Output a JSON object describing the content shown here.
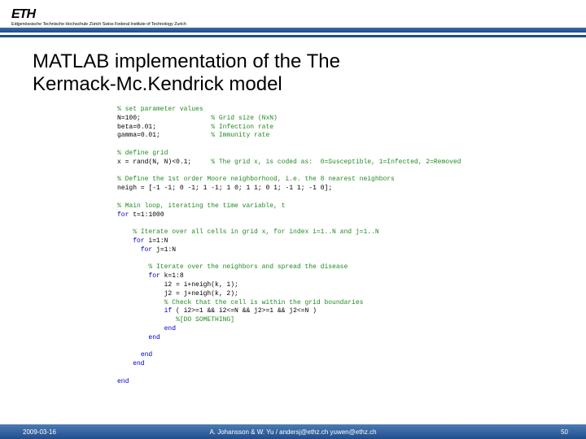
{
  "header": {
    "logo_main": "ETH",
    "logo_sub": "Eidgenössische Technische Hochschule Zürich  Swiss Federal Institute of Technology Zurich"
  },
  "title_line1": "MATLAB implementation of the The",
  "title_line2": "Kermack-Mc.Kendrick  model",
  "code": {
    "l01": "% set parameter values",
    "l02a": "N=",
    "l02b": "100",
    "l02c": ";                  ",
    "l02d": "% Grid size (NxN)",
    "l03a": "beta=",
    "l03b": "0.01",
    "l03c": ";              ",
    "l03d": "% Infection rate",
    "l04a": "gamma=",
    "l04b": "0.01",
    "l04c": ";             ",
    "l04d": "% Immunity rate",
    "l05": "",
    "l06": "% define grid",
    "l07a": "x = rand(N, N)<",
    "l07b": "0.1",
    "l07c": ";     ",
    "l07d": "% The grid x, is coded as:  0=Susceptible, 1=Infected, 2=Removed",
    "l08": "",
    "l09": "% Define the 1st order Moore neighborhood, i.e. the 8 nearest neighbors",
    "l10a": "neigh = [",
    "l10b": "-1 -1",
    "l10c": "; ",
    "l10d": "0 -1",
    "l10e": "; ",
    "l10f": "1 -1",
    "l10g": "; ",
    "l10h": "1 0",
    "l10i": "; ",
    "l10j": "1 1",
    "l10k": "; ",
    "l10l": "0 1",
    "l10m": "; ",
    "l10n": "-1 1",
    "l10o": "; ",
    "l10p": "-1 0",
    "l10q": "];",
    "l11": "",
    "l12": "% Main loop, iterating the time variable, t",
    "l13a": "for",
    "l13b": " t=",
    "l13c": "1",
    "l13d": ":",
    "l13e": "1000",
    "l14": "",
    "l15": "    % Iterate over all cells in grid x, for index i=1..N and j=1..N",
    "l16a": "    ",
    "l16b": "for",
    "l16c": " i=",
    "l16d": "1",
    "l16e": ":N",
    "l17a": "      ",
    "l17b": "for",
    "l17c": " j=",
    "l17d": "1",
    "l17e": ":N",
    "l18": "",
    "l19": "        % Iterate over the neighbors and spread the disease",
    "l20a": "        ",
    "l20b": "for",
    "l20c": " k=",
    "l20d": "1",
    "l20e": ":",
    "l20f": "8",
    "l21a": "            i2 = i+neigh(k, ",
    "l21b": "1",
    "l21c": ");",
    "l22a": "            j2 = j+neigh(k, ",
    "l22b": "2",
    "l22c": ");",
    "l23": "            % Check that the cell is within the grid boundaries",
    "l24a": "            ",
    "l24b": "if",
    "l24c": " ( i2>=",
    "l24d": "1",
    "l24e": " && i2<=N && j2>=",
    "l24f": "1",
    "l24g": " && j2<=N )",
    "l25a": "               ",
    "l25b": "%[DO SOMETHING]",
    "l26a": "            ",
    "l26b": "end",
    "l27a": "        ",
    "l27b": "end",
    "l28": "",
    "l29a": "      ",
    "l29b": "end",
    "l30a": "    ",
    "l30b": "end",
    "l31": "",
    "l32": "end"
  },
  "footer": {
    "date": "2009-03-16",
    "center": "A. Johansson & W. Yu / andersj@ethz.ch yuwen@ethz.ch",
    "page": "50"
  },
  "colors": {
    "brand_blue": "#1f4e8c",
    "comment": "#228b22",
    "keyword": "#0000cd",
    "string": "#a020f0"
  }
}
